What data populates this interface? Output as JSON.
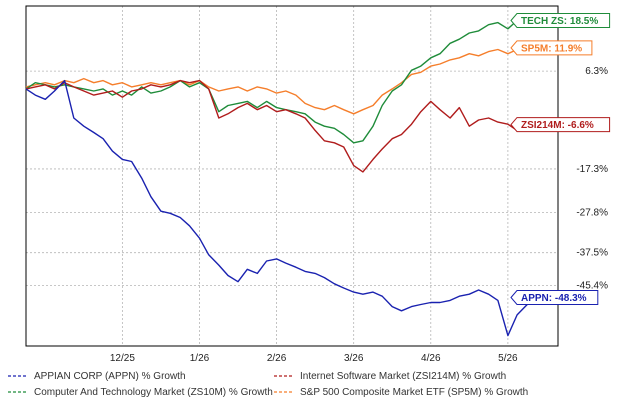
{
  "chart_data": {
    "type": "line",
    "y_unit": "% growth",
    "ylim": [
      -60.0,
      22.0
    ],
    "y_ticks": [
      "6.3%",
      "-17.3%",
      "-27.8%",
      "-37.5%",
      "-45.4%"
    ],
    "y_tick_values": [
      6.3,
      -17.3,
      -27.8,
      -37.5,
      -45.4
    ],
    "x_ticks": [
      "12/25",
      "1/26",
      "2/26",
      "3/26",
      "4/26",
      "5/26"
    ],
    "x_tick_positions": [
      1.25,
      2.25,
      3.25,
      4.25,
      5.25,
      6.25
    ],
    "x_range": [
      0,
      6.9
    ],
    "grid": true,
    "legend_position": "bottom",
    "series": [
      {
        "name": "APPIAN CORP (APPN) % Growth",
        "color": "#1a22b0",
        "end_label": "APPN: -48.3%",
        "x": [
          0.0,
          0.12,
          0.25,
          0.37,
          0.5,
          0.62,
          0.75,
          0.88,
          1.0,
          1.12,
          1.25,
          1.37,
          1.5,
          1.62,
          1.75,
          1.87,
          2.0,
          2.12,
          2.25,
          2.37,
          2.5,
          2.62,
          2.75,
          2.87,
          3.0,
          3.12,
          3.25,
          3.37,
          3.5,
          3.62,
          3.75,
          3.87,
          4.0,
          4.12,
          4.25,
          4.37,
          4.5,
          4.62,
          4.75,
          4.87,
          5.0,
          5.12,
          5.25,
          5.37,
          5.5,
          5.62,
          5.75,
          5.87,
          6.0,
          6.12,
          6.25,
          6.37,
          6.5,
          6.62,
          6.75,
          6.87
        ],
        "values": [
          2.0,
          0.5,
          -0.5,
          1.5,
          4.0,
          -5.0,
          -7.0,
          -8.5,
          -10.0,
          -13.0,
          -15.0,
          -15.5,
          -19.5,
          -24.0,
          -27.5,
          -28.0,
          -29.0,
          -31.0,
          -34.0,
          -38.0,
          -40.5,
          -43.0,
          -44.5,
          -41.5,
          -42.5,
          -39.5,
          -39.0,
          -40.0,
          -41.0,
          -42.0,
          -42.5,
          -43.5,
          -45.0,
          -46.0,
          -47.0,
          -47.5,
          -47.0,
          -48.0,
          -50.5,
          -51.5,
          -50.5,
          -50.0,
          -49.5,
          -49.5,
          -49.0,
          -48.0,
          -47.5,
          -46.5,
          -47.5,
          -49.0,
          -57.5,
          -52.5,
          -50.0,
          -48.5,
          -48.5,
          -48.3
        ]
      },
      {
        "name": "Internet Software Market (ZSI214M) % Growth",
        "color": "#b01c1c",
        "end_label": "ZSI214M: -6.6%",
        "x": [
          0.0,
          0.12,
          0.25,
          0.37,
          0.5,
          0.62,
          0.75,
          0.88,
          1.0,
          1.12,
          1.25,
          1.37,
          1.5,
          1.62,
          1.75,
          1.87,
          2.0,
          2.12,
          2.25,
          2.37,
          2.5,
          2.62,
          2.75,
          2.87,
          3.0,
          3.12,
          3.25,
          3.37,
          3.5,
          3.62,
          3.75,
          3.87,
          4.0,
          4.12,
          4.25,
          4.37,
          4.5,
          4.62,
          4.75,
          4.87,
          5.0,
          5.12,
          5.25,
          5.37,
          5.5,
          5.62,
          5.75,
          5.87,
          6.0,
          6.12,
          6.25,
          6.37,
          6.5,
          6.62,
          6.75,
          6.87
        ],
        "values": [
          2.0,
          2.5,
          3.0,
          2.0,
          3.5,
          2.5,
          1.5,
          0.5,
          1.0,
          1.5,
          0.0,
          1.5,
          2.0,
          3.0,
          2.5,
          3.0,
          4.0,
          3.5,
          4.0,
          2.0,
          -5.0,
          -4.0,
          -2.5,
          -1.5,
          -3.0,
          -2.0,
          -3.5,
          -3.0,
          -4.0,
          -5.0,
          -8.0,
          -10.5,
          -11.0,
          -12.0,
          -16.5,
          -18.0,
          -15.0,
          -12.5,
          -10.0,
          -9.0,
          -6.5,
          -3.5,
          -1.0,
          -3.0,
          -5.0,
          -2.5,
          -7.0,
          -5.5,
          -5.0,
          -6.0,
          -6.5,
          -8.0,
          -7.5,
          -7.0,
          -6.8,
          -6.6
        ]
      },
      {
        "name": "Computer And Technology Market (ZS10M) % Growth",
        "color": "#1f8c3a",
        "end_label": "TECH ZS: 18.5%",
        "x": [
          0.0,
          0.12,
          0.25,
          0.37,
          0.5,
          0.62,
          0.75,
          0.88,
          1.0,
          1.12,
          1.25,
          1.37,
          1.5,
          1.62,
          1.75,
          1.87,
          2.0,
          2.12,
          2.25,
          2.37,
          2.5,
          2.62,
          2.75,
          2.87,
          3.0,
          3.12,
          3.25,
          3.37,
          3.5,
          3.62,
          3.75,
          3.87,
          4.0,
          4.12,
          4.25,
          4.37,
          4.5,
          4.62,
          4.75,
          4.87,
          5.0,
          5.12,
          5.25,
          5.37,
          5.5,
          5.62,
          5.75,
          5.87,
          6.0,
          6.12,
          6.25,
          6.37,
          6.5,
          6.62,
          6.75,
          6.87
        ],
        "values": [
          2.0,
          3.5,
          3.0,
          2.5,
          3.0,
          2.5,
          2.0,
          1.5,
          2.0,
          0.5,
          1.5,
          0.5,
          2.5,
          1.0,
          1.5,
          2.5,
          4.0,
          2.5,
          3.5,
          2.0,
          -3.5,
          -2.0,
          -1.5,
          -1.0,
          -2.5,
          -1.0,
          -2.5,
          -3.0,
          -3.5,
          -4.0,
          -6.0,
          -7.0,
          -7.5,
          -9.0,
          -11.0,
          -10.5,
          -7.0,
          -2.0,
          1.5,
          3.0,
          6.5,
          7.5,
          9.5,
          10.5,
          13.0,
          14.0,
          15.5,
          16.0,
          17.5,
          18.0,
          16.5,
          18.5,
          19.5,
          18.0,
          18.5,
          18.5
        ]
      },
      {
        "name": "S&P 500 Composite Market ETF (SP5M) % Growth",
        "color": "#f57e2b",
        "end_label": "SP5M: 11.9%",
        "x": [
          0.0,
          0.12,
          0.25,
          0.37,
          0.5,
          0.62,
          0.75,
          0.88,
          1.0,
          1.12,
          1.25,
          1.37,
          1.5,
          1.62,
          1.75,
          1.87,
          2.0,
          2.12,
          2.25,
          2.37,
          2.5,
          2.62,
          2.75,
          2.87,
          3.0,
          3.12,
          3.25,
          3.37,
          3.5,
          3.62,
          3.75,
          3.87,
          4.0,
          4.12,
          4.25,
          4.37,
          4.5,
          4.62,
          4.75,
          4.87,
          5.0,
          5.12,
          5.25,
          5.37,
          5.5,
          5.62,
          5.75,
          5.87,
          6.0,
          6.12,
          6.25,
          6.37,
          6.5,
          6.62,
          6.75,
          6.87
        ],
        "values": [
          2.5,
          3.0,
          3.5,
          3.0,
          4.0,
          3.5,
          4.5,
          3.5,
          4.0,
          3.0,
          3.5,
          2.5,
          3.0,
          3.5,
          3.0,
          3.5,
          4.0,
          3.0,
          4.0,
          2.5,
          1.5,
          2.0,
          2.5,
          1.5,
          2.5,
          2.0,
          1.0,
          1.5,
          0.5,
          -1.5,
          -2.5,
          -3.0,
          -2.0,
          -3.0,
          -4.0,
          -3.0,
          -2.0,
          0.5,
          2.0,
          3.5,
          5.5,
          6.0,
          7.5,
          8.0,
          9.0,
          9.5,
          10.5,
          10.0,
          11.0,
          11.5,
          10.5,
          11.5,
          12.0,
          11.5,
          12.0,
          11.9
        ]
      }
    ]
  },
  "legend": {
    "items": [
      "APPIAN CORP (APPN) % Growth",
      "Internet Software Market (ZSI214M) % Growth",
      "Computer And Technology Market (ZS10M) % Growth",
      "S&P 500 Composite Market ETF (SP5M) % Growth"
    ]
  }
}
